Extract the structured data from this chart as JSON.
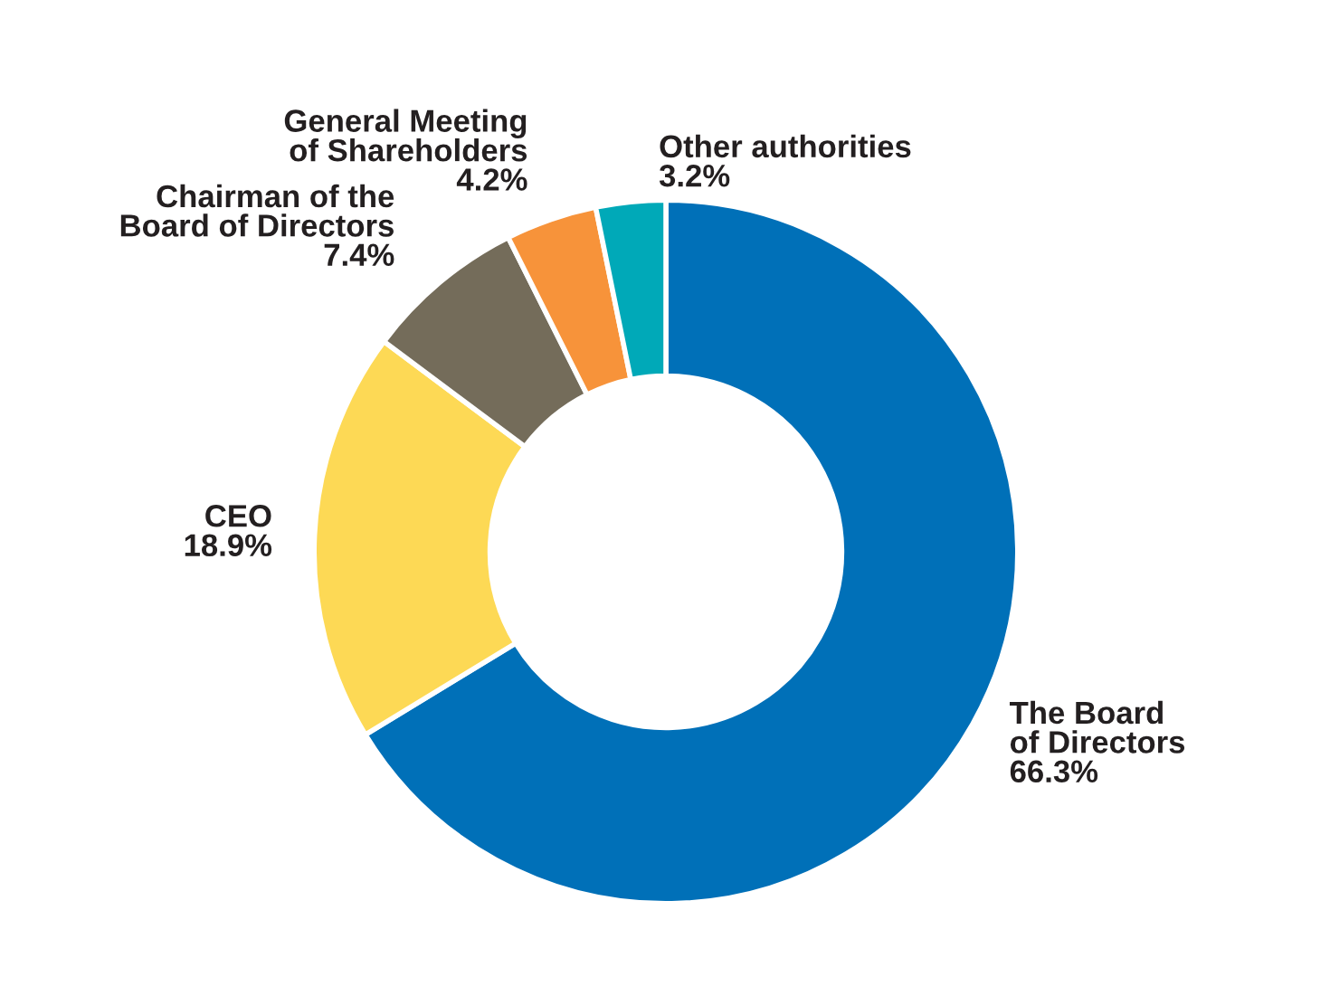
{
  "chart_data": {
    "type": "donut",
    "categories": [
      "The Board\nof Directors",
      "CEO",
      "Chairman of the\nBoard of Directors",
      "General Meeting\nof Shareholders",
      "Other authorities"
    ],
    "values": [
      66.3,
      18.9,
      7.4,
      4.2,
      3.2
    ],
    "value_labels": [
      "66.3%",
      "18.9%",
      "7.4%",
      "4.2%",
      "3.2%"
    ],
    "colors": [
      "#0070b8",
      "#fdd955",
      "#746c5a",
      "#f7933a",
      "#00a9b8"
    ]
  }
}
